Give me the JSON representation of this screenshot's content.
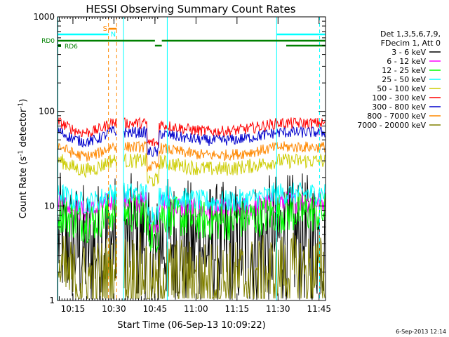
{
  "chart_data": {
    "type": "line",
    "title": "HESSI Observing Summary Count Rates",
    "xlabel": "Start Time (06-Sep-13 10:09:22)",
    "ylabel_main": "Count Rate (s",
    "ylabel_sup1": "-1",
    "ylabel_mid": " detector",
    "ylabel_sup2": "-1",
    "ylabel_end": ")",
    "yscale": "log",
    "ylim": [
      1,
      1000
    ],
    "xlim_minutes": [
      10.0,
      45.5
    ],
    "x_ticks": [
      {
        "label": "10:15",
        "t": 10.25
      },
      {
        "label": "10:30",
        "t": 10.5
      },
      {
        "label": "10:45",
        "t": 10.75
      },
      {
        "label": "11:00",
        "t": 11.0
      },
      {
        "label": "11:15",
        "t": 11.25
      },
      {
        "label": "11:30",
        "t": 11.5
      },
      {
        "label": "11:45",
        "t": 11.75
      }
    ],
    "y_ticks": [
      {
        "label": "1",
        "v": 1
      },
      {
        "label": "10",
        "v": 10
      },
      {
        "label": "100",
        "v": 100
      },
      {
        "label": "1000",
        "v": 1000
      }
    ],
    "legend_header": [
      "Det 1,3,5,6,7,9,",
      "FDecim 1, Att 0"
    ],
    "series": [
      {
        "name": "3 - 6 keV",
        "color": "#000000",
        "base": 4.5,
        "amp": 0.5
      },
      {
        "name": "6 - 12 keV",
        "color": "#ff00ff",
        "base": 11,
        "amp": 0.12
      },
      {
        "name": "12 - 25 keV",
        "color": "#00ff00",
        "base": 8.5,
        "amp": 0.22
      },
      {
        "name": "25 - 50 keV",
        "color": "#00ffff",
        "base": 13.5,
        "amp": 0.12
      },
      {
        "name": "50 - 100 keV",
        "color": "#cccc00",
        "base": 30,
        "amp": 0.08
      },
      {
        "name": "100 - 300 keV",
        "color": "#ff0000",
        "base": 75,
        "amp": 0.06
      },
      {
        "name": "300 - 800 keV",
        "color": "#0000cc",
        "base": 60,
        "amp": 0.06
      },
      {
        "name": "800 - 7000 keV",
        "color": "#ff8800",
        "base": 42,
        "amp": 0.06
      },
      {
        "name": "7000 - 20000 keV",
        "color": "#808000",
        "base": 2.0,
        "amp": 0.3
      }
    ],
    "flags": [
      {
        "label": "S",
        "color": "#ff8800"
      },
      {
        "label": "N",
        "color": "#00ffff"
      },
      {
        "label": "RD0",
        "color": "#008000"
      },
      {
        "label": "RD6",
        "color": "#008000"
      }
    ],
    "timestamp": "6-Sep-2013 12:14"
  }
}
